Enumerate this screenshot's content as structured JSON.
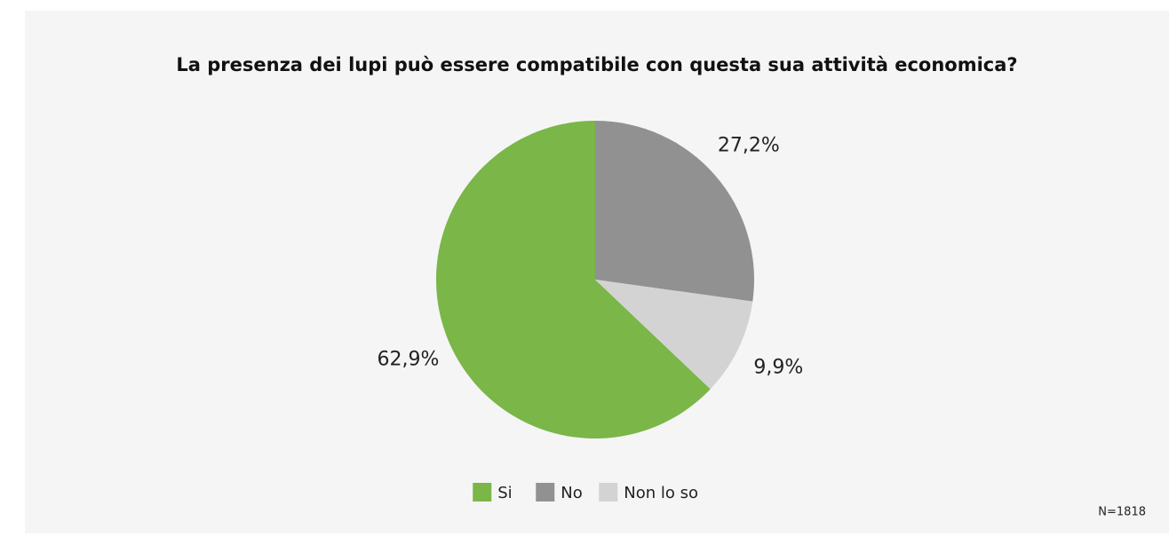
{
  "chart_data": {
    "type": "pie",
    "title": "La presenza dei lupi può essere compatibile con questa sua attività economica?",
    "categories": [
      "Si",
      "No",
      "Non lo so"
    ],
    "values": [
      62.9,
      27.2,
      9.9
    ],
    "value_labels": [
      "62,9%",
      "27,2%",
      "9,9%"
    ],
    "colors": [
      "#7ab648",
      "#919191",
      "#d3d3d3"
    ],
    "legend": "bottom",
    "note": "N=1818"
  }
}
